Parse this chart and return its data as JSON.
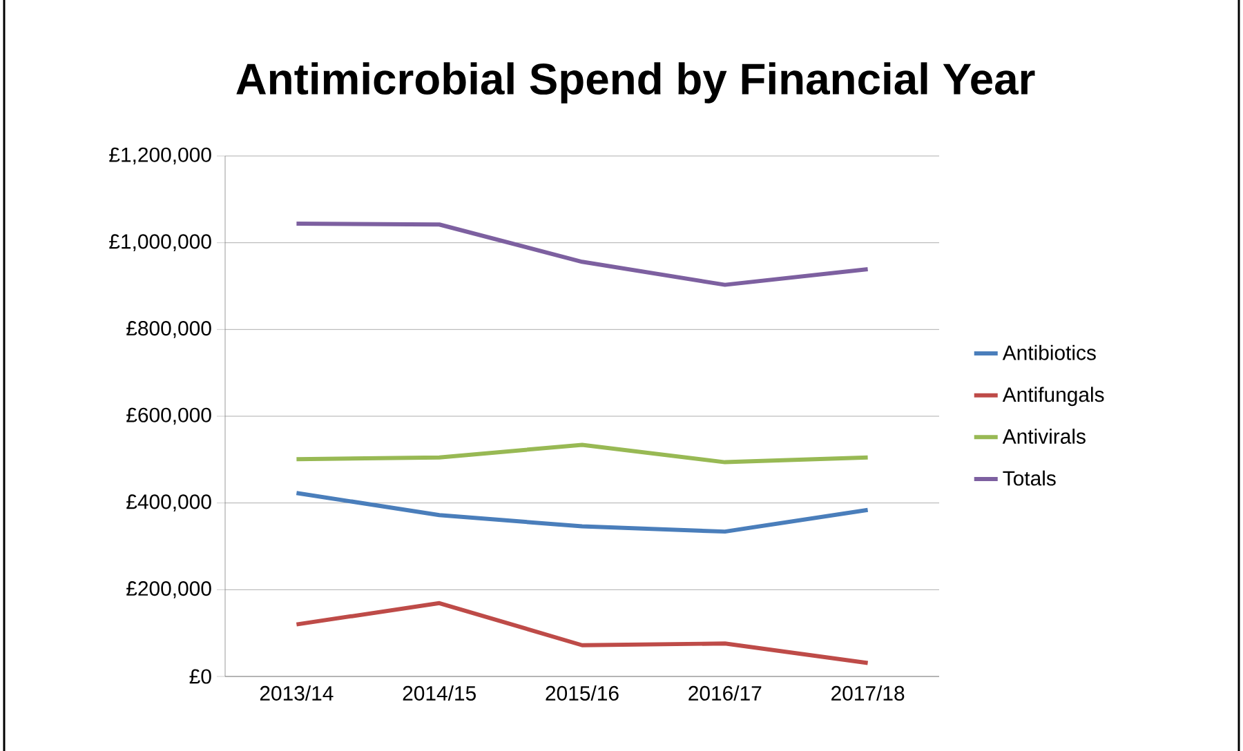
{
  "chart_data": {
    "type": "line",
    "title": "Antimicrobial Spend by Financial Year",
    "categories": [
      "2013/14",
      "2014/15",
      "2015/16",
      "2016/17",
      "2017/18"
    ],
    "series": [
      {
        "name": "Antibiotics",
        "color": "#4a7ebb",
        "values": [
          423000,
          372000,
          346000,
          334000,
          384000
        ]
      },
      {
        "name": "Antifungals",
        "color": "#be4b48",
        "values": [
          120000,
          169000,
          72000,
          76000,
          31000
        ]
      },
      {
        "name": "Antivirals",
        "color": "#98b954",
        "values": [
          501000,
          505000,
          534000,
          494000,
          505000
        ]
      },
      {
        "name": "Totals",
        "color": "#7d60a0",
        "values": [
          1044000,
          1042000,
          956000,
          903000,
          939000
        ]
      }
    ],
    "ylim": [
      0,
      1200000
    ],
    "yticks": [
      {
        "value": 0,
        "label": "£0"
      },
      {
        "value": 200000,
        "label": "£200,000"
      },
      {
        "value": 400000,
        "label": "£400,000"
      },
      {
        "value": 600000,
        "label": "£600,000"
      },
      {
        "value": 800000,
        "label": "£800,000"
      },
      {
        "value": 1000000,
        "label": "£1,000,000"
      },
      {
        "value": 1200000,
        "label": "£1,200,000"
      }
    ],
    "grid": "y",
    "legend": "right",
    "marker": "none",
    "line_style": "solid"
  }
}
